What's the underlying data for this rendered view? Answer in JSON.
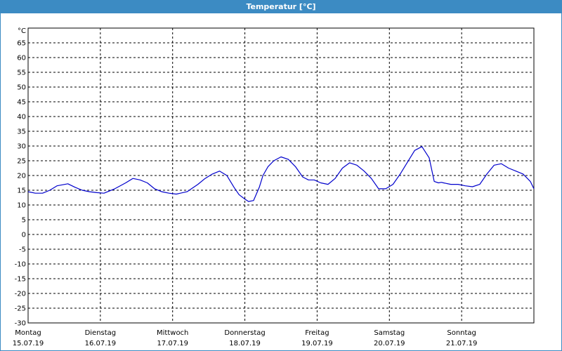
{
  "window": {
    "title": "Temperatur [°C]"
  },
  "chart_data": {
    "type": "line",
    "title": "Temperatur [°C]",
    "ylabel": "°C",
    "xlabel": "",
    "ylim": [
      -30,
      70
    ],
    "y_ticks": [
      65,
      60,
      55,
      50,
      45,
      40,
      35,
      30,
      25,
      20,
      15,
      10,
      5,
      0,
      -5,
      -10,
      -15,
      -20,
      -25,
      -30
    ],
    "xlim": [
      0,
      7
    ],
    "x_ticks": [
      {
        "day": "Montag",
        "date": "15.07.19"
      },
      {
        "day": "Dienstag",
        "date": "16.07.19"
      },
      {
        "day": "Mittwoch",
        "date": "17.07.19"
      },
      {
        "day": "Donnerstag",
        "date": "18.07.19"
      },
      {
        "day": "Freitag",
        "date": "19.07.19"
      },
      {
        "day": "Samstag",
        "date": "20.07.19"
      },
      {
        "day": "Sonntag",
        "date": "21.07.19"
      }
    ],
    "grid": true,
    "line_color": "#0000cc",
    "series": [
      {
        "x": [
          0.0,
          0.1,
          0.2,
          0.3,
          0.4,
          0.55,
          0.65,
          0.75,
          0.85,
          0.95,
          1.05,
          1.2,
          1.35,
          1.45,
          1.55,
          1.65,
          1.75,
          1.85,
          1.95,
          2.05,
          2.2,
          2.35,
          2.45,
          2.55,
          2.65,
          2.75,
          2.85,
          2.92,
          3.0,
          3.05,
          3.12,
          3.2,
          3.25,
          3.32,
          3.4,
          3.5,
          3.6,
          3.7,
          3.8,
          3.88,
          3.96,
          4.05,
          4.15,
          4.25,
          4.35,
          4.45,
          4.55,
          4.65,
          4.75,
          4.85,
          4.95,
          5.05,
          5.15,
          5.25,
          5.35,
          5.45,
          5.55,
          5.62,
          5.68,
          5.72,
          5.75,
          5.85,
          5.95,
          6.05,
          6.15,
          6.25,
          6.35,
          6.45,
          6.55,
          6.65,
          6.75,
          6.85,
          6.95,
          7.0
        ],
        "y": [
          14.5,
          14.0,
          14.0,
          15.0,
          16.5,
          17.2,
          16.0,
          15.0,
          14.5,
          14.2,
          14.0,
          15.5,
          17.5,
          19.0,
          18.5,
          17.5,
          15.5,
          14.5,
          14.0,
          13.7,
          14.5,
          17.0,
          19.0,
          20.5,
          21.5,
          20.0,
          16.0,
          13.5,
          12.0,
          11.2,
          11.5,
          16.0,
          20.0,
          23.0,
          25.0,
          26.3,
          25.5,
          23.0,
          19.5,
          18.5,
          18.5,
          17.5,
          17.0,
          19.0,
          22.5,
          24.3,
          23.5,
          21.5,
          19.0,
          15.5,
          15.5,
          17.0,
          20.5,
          24.5,
          28.5,
          29.8,
          26.0,
          18.0,
          17.5,
          17.7,
          17.5,
          17.0,
          17.0,
          16.5,
          16.2,
          17.0,
          20.5,
          23.5,
          24.0,
          22.5,
          21.5,
          20.5,
          18.0,
          15.5
        ]
      }
    ]
  }
}
